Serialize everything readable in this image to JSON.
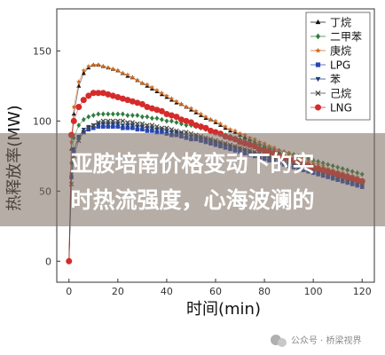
{
  "chart_data": {
    "type": "line",
    "xlabel": "时间(min)",
    "ylabel": "热释放率(MW)",
    "xlim": [
      -5,
      125
    ],
    "ylim": [
      -15,
      180
    ],
    "xticks": [
      0,
      20,
      40,
      60,
      80,
      100,
      120
    ],
    "yticks": [
      0,
      50,
      100,
      150
    ],
    "legend_position": "top-right",
    "series": [
      {
        "name": "丁烷",
        "color": "#111111",
        "marker": "triangle-up",
        "x": [
          0,
          1,
          2,
          4,
          6,
          8,
          10,
          12,
          14,
          16,
          18,
          20,
          22,
          24,
          26,
          28,
          30,
          32,
          34,
          36,
          38,
          40,
          42,
          44,
          46,
          48,
          50,
          52,
          54,
          56,
          58,
          60,
          62,
          64,
          66,
          68,
          70,
          72,
          74,
          76,
          78,
          80,
          82,
          84,
          86,
          88,
          90,
          92,
          94,
          96,
          98,
          100,
          102,
          104,
          106,
          108,
          110,
          112,
          114,
          116,
          118,
          120
        ],
        "y": [
          0,
          80,
          105,
          125,
          134,
          138,
          140,
          140,
          139,
          138,
          137,
          136,
          134,
          132,
          131,
          129,
          127,
          125,
          123,
          121,
          119,
          117,
          115,
          113,
          112,
          110,
          108,
          106,
          104,
          102,
          101,
          99,
          97,
          95,
          93,
          92,
          90,
          88,
          87,
          85,
          84,
          82,
          81,
          79,
          78,
          76,
          75,
          73,
          72,
          71,
          69,
          68,
          67,
          66,
          64,
          63,
          62,
          61,
          60,
          59,
          58,
          56
        ]
      },
      {
        "name": "二甲苯",
        "color": "#2f7d3f",
        "marker": "diamond",
        "x": [
          0,
          1,
          2,
          4,
          6,
          8,
          10,
          12,
          14,
          16,
          18,
          20,
          22,
          24,
          26,
          28,
          30,
          32,
          34,
          36,
          38,
          40,
          42,
          44,
          46,
          48,
          50,
          52,
          54,
          56,
          58,
          60,
          62,
          64,
          66,
          68,
          70,
          72,
          74,
          76,
          78,
          80,
          82,
          84,
          86,
          88,
          90,
          92,
          94,
          96,
          98,
          100,
          102,
          104,
          106,
          108,
          110,
          112,
          114,
          116,
          118,
          120
        ],
        "y": [
          0,
          70,
          88,
          97,
          101,
          103,
          104,
          105,
          105,
          105,
          105,
          105,
          105,
          104,
          104,
          104,
          103,
          103,
          102,
          102,
          101,
          100,
          100,
          99,
          98,
          97,
          97,
          96,
          95,
          94,
          93,
          92,
          91,
          90,
          89,
          88,
          87,
          86,
          85,
          84,
          83,
          82,
          81,
          80,
          79,
          78,
          77,
          76,
          75,
          74,
          73,
          72,
          71,
          70,
          69,
          68,
          67,
          66,
          65,
          64,
          63,
          62
        ]
      },
      {
        "name": "庚烷",
        "color": "#d2691e",
        "marker": "star",
        "x": [
          0,
          1,
          2,
          4,
          6,
          8,
          10,
          12,
          14,
          16,
          18,
          20,
          22,
          24,
          26,
          28,
          30,
          32,
          34,
          36,
          38,
          40,
          42,
          44,
          46,
          48,
          50,
          52,
          54,
          56,
          58,
          60,
          62,
          64,
          66,
          68,
          70,
          72,
          74,
          76,
          78,
          80,
          82,
          84,
          86,
          88,
          90,
          92,
          94,
          96,
          98,
          100,
          102,
          104,
          106,
          108,
          110,
          112,
          114,
          116,
          118,
          120
        ],
        "y": [
          0,
          85,
          110,
          128,
          136,
          139,
          140,
          140,
          139,
          138,
          137,
          136,
          134,
          133,
          131,
          129,
          127,
          126,
          124,
          122,
          120,
          118,
          116,
          114,
          112,
          110,
          109,
          107,
          105,
          103,
          101,
          100,
          98,
          96,
          94,
          93,
          91,
          90,
          88,
          87,
          85,
          84,
          82,
          81,
          79,
          78,
          77,
          75,
          74,
          73,
          71,
          70,
          69,
          68,
          66,
          65,
          64,
          63,
          62,
          61,
          60,
          58
        ]
      },
      {
        "name": "LPG",
        "color": "#2b46b0",
        "marker": "square",
        "x": [
          0,
          1,
          2,
          4,
          6,
          8,
          10,
          12,
          14,
          16,
          18,
          20,
          22,
          24,
          26,
          28,
          30,
          32,
          34,
          36,
          38,
          40,
          42,
          44,
          46,
          48,
          50,
          52,
          54,
          56,
          58,
          60,
          62,
          64,
          66,
          68,
          70,
          72,
          74,
          76,
          78,
          80,
          82,
          84,
          86,
          88,
          90,
          92,
          94,
          96,
          98,
          100,
          102,
          104,
          106,
          108,
          110,
          112,
          114,
          116,
          118,
          120
        ],
        "y": [
          0,
          60,
          78,
          88,
          92,
          94,
          95,
          96,
          96,
          96,
          96,
          96,
          95,
          95,
          95,
          94,
          94,
          93,
          93,
          92,
          92,
          91,
          90,
          90,
          89,
          88,
          87,
          87,
          86,
          85,
          84,
          83,
          82,
          81,
          80,
          79,
          78,
          77,
          76,
          75,
          74,
          73,
          72,
          71,
          70,
          69,
          68,
          67,
          66,
          65,
          64,
          63,
          62,
          61,
          60,
          59,
          58,
          57,
          56,
          55,
          54,
          53
        ]
      },
      {
        "name": "苯",
        "color": "#1a3f7a",
        "marker": "triangle-down",
        "x": [
          0,
          1,
          2,
          4,
          6,
          8,
          10,
          12,
          14,
          16,
          18,
          20,
          22,
          24,
          26,
          28,
          30,
          32,
          34,
          36,
          38,
          40,
          42,
          44,
          46,
          48,
          50,
          52,
          54,
          56,
          58,
          60,
          62,
          64,
          66,
          68,
          70,
          72,
          74,
          76,
          78,
          80,
          82,
          84,
          86,
          88,
          90,
          92,
          94,
          96,
          98,
          100,
          102,
          104,
          106,
          108,
          110,
          112,
          114,
          116,
          118,
          120
        ],
        "y": [
          0,
          62,
          80,
          89,
          94,
          96,
          97,
          98,
          98,
          98,
          98,
          98,
          97,
          97,
          97,
          96,
          96,
          95,
          95,
          94,
          94,
          93,
          92,
          92,
          91,
          90,
          89,
          89,
          88,
          87,
          86,
          85,
          84,
          83,
          82,
          81,
          80,
          79,
          78,
          77,
          76,
          75,
          74,
          73,
          72,
          71,
          70,
          69,
          68,
          67,
          66,
          65,
          64,
          63,
          62,
          61,
          60,
          59,
          58,
          57,
          56,
          55
        ]
      },
      {
        "name": "己烷",
        "color": "#444444",
        "marker": "x",
        "x": [
          0,
          1,
          2,
          4,
          6,
          8,
          10,
          12,
          14,
          16,
          18,
          20,
          22,
          24,
          26,
          28,
          30,
          32,
          34,
          36,
          38,
          40,
          42,
          44,
          46,
          48,
          50,
          52,
          54,
          56,
          58,
          60,
          62,
          64,
          66,
          68,
          70,
          72,
          74,
          76,
          78,
          80,
          82,
          84,
          86,
          88,
          90,
          92,
          94,
          96,
          98,
          100,
          102,
          104,
          106,
          108,
          110,
          112,
          114,
          116,
          118,
          120
        ],
        "y": [
          0,
          55,
          75,
          86,
          92,
          95,
          97,
          99,
          100,
          100,
          100,
          100,
          100,
          99,
          99,
          98,
          98,
          97,
          97,
          96,
          95,
          95,
          94,
          93,
          92,
          92,
          91,
          90,
          89,
          88,
          87,
          86,
          85,
          84,
          83,
          82,
          81,
          80,
          79,
          78,
          77,
          76,
          75,
          74,
          73,
          72,
          71,
          70,
          69,
          68,
          67,
          66,
          65,
          64,
          63,
          62,
          61,
          60,
          59,
          58,
          57,
          56
        ]
      },
      {
        "name": "LNG",
        "color": "#d62b2b",
        "marker": "circle",
        "x": [
          0,
          1,
          2,
          4,
          6,
          8,
          10,
          12,
          14,
          16,
          18,
          20,
          22,
          24,
          26,
          28,
          30,
          32,
          34,
          36,
          38,
          40,
          42,
          44,
          46,
          48,
          50,
          52,
          54,
          56,
          58,
          60,
          62,
          64,
          66,
          68,
          70,
          72,
          74,
          76,
          78,
          80,
          82,
          84,
          86,
          88,
          90,
          92,
          94,
          96,
          98,
          100,
          102,
          104,
          106,
          108,
          110,
          112,
          114,
          116,
          118,
          120
        ],
        "y": [
          0,
          90,
          100,
          110,
          115,
          118,
          120,
          120,
          120,
          119,
          118,
          117,
          116,
          115,
          114,
          113,
          112,
          110,
          109,
          108,
          107,
          105,
          104,
          103,
          101,
          100,
          99,
          97,
          96,
          95,
          93,
          92,
          91,
          89,
          88,
          87,
          85,
          84,
          83,
          82,
          80,
          79,
          78,
          77,
          75,
          74,
          73,
          72,
          71,
          70,
          68,
          67,
          66,
          65,
          64,
          63,
          62,
          61,
          60,
          59,
          58,
          57
        ]
      }
    ]
  },
  "overlay": {
    "line1": "亚胺培南价格变动下的实",
    "line2": "时热流强度，心海波澜的"
  },
  "watermark": {
    "text": "公众号 · 桥梁视界",
    "icon": "wechat-icon"
  }
}
